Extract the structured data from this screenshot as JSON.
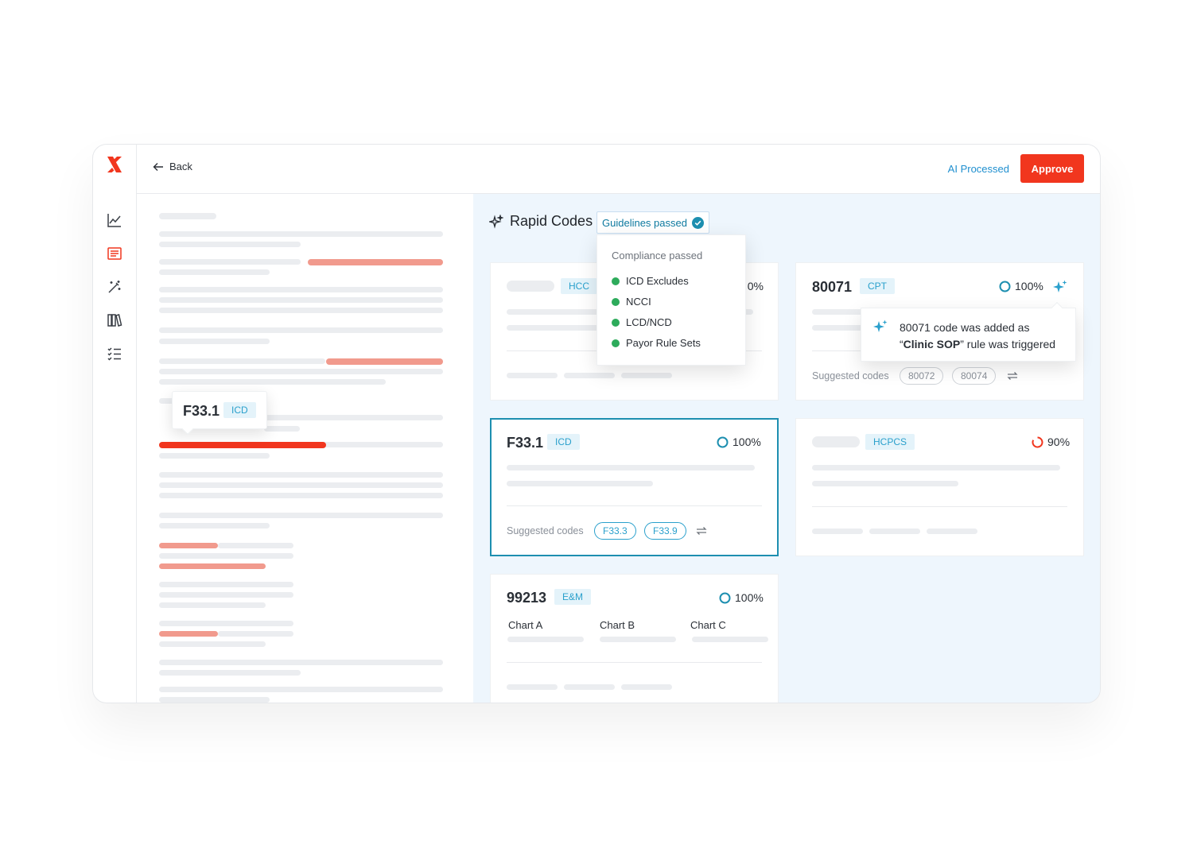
{
  "topbar": {
    "back_label": "Back",
    "ai_processed_label": "AI Processed",
    "approve_label": "Approve"
  },
  "sidebar": {
    "items": [
      {
        "icon": "line-chart-icon"
      },
      {
        "icon": "document-list-icon",
        "active": true
      },
      {
        "icon": "magic-wand-icon"
      },
      {
        "icon": "books-icon"
      },
      {
        "icon": "checklist-icon"
      }
    ]
  },
  "document": {
    "icd_popover": {
      "code": "F33.1",
      "badge": "ICD"
    }
  },
  "rapid_codes": {
    "title": "Rapid Codes",
    "guidelines_label": "Guidelines passed",
    "compliance": {
      "header": "Compliance passed",
      "items": [
        "ICD Excludes",
        "NCCI",
        "LCD/NCD",
        "Payor Rule Sets"
      ]
    },
    "cards": {
      "hcc": {
        "badge": "HCC",
        "percent": "0%"
      },
      "cpt": {
        "code": "80071",
        "badge": "CPT",
        "percent": "100%",
        "suggested_label": "Suggested codes",
        "suggested": [
          "80072",
          "80074"
        ]
      },
      "icd": {
        "code": "F33.1",
        "badge": "ICD",
        "percent": "100%",
        "suggested_label": "Suggested codes",
        "suggested": [
          "F33.3",
          "F33.9"
        ]
      },
      "hcpcs": {
        "badge": "HCPCS",
        "percent": "90%"
      },
      "em": {
        "code": "99213",
        "badge": "E&M",
        "percent": "100%",
        "charts": [
          "Chart A",
          "Chart B",
          "Chart C"
        ]
      }
    },
    "sop_tooltip": {
      "line1": "80071 code was added as",
      "line2_quote_open": "“",
      "line2_bold": "Clinic SOP",
      "line2_rest": "” rule was triggered"
    }
  },
  "colors": {
    "brand_red": "#f1361e",
    "accent_blue": "#1f8fcf",
    "teal": "#1d8fb0",
    "ok_green": "#2dab5b",
    "panel_bg": "#eef6fd"
  }
}
